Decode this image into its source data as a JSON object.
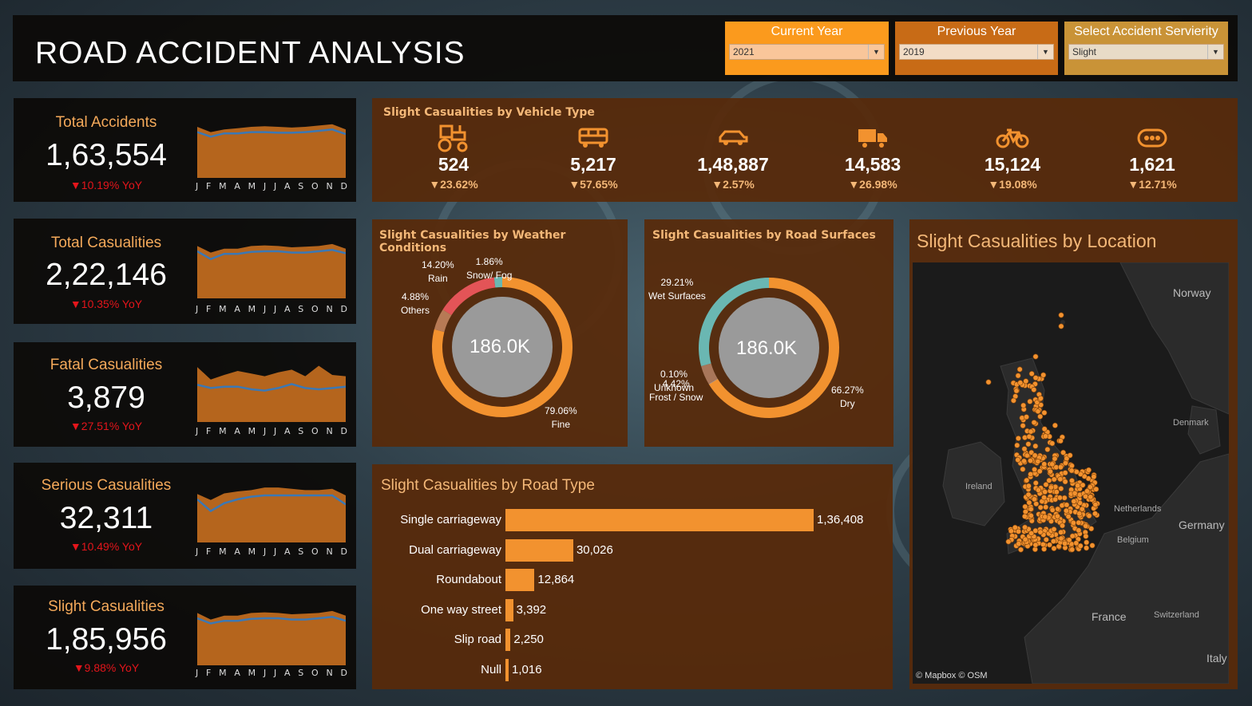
{
  "header": {
    "title": "ROAD ACCIDENT ANALYSIS",
    "filters": [
      {
        "label": "Current Year",
        "value": "2021"
      },
      {
        "label": "Previous Year",
        "value": "2019"
      },
      {
        "label": "Select Accident Servierity",
        "value": "Slight"
      }
    ]
  },
  "colors": {
    "accent": "#f2922f",
    "decline": "#e4151b",
    "trend_line": "#3c78b4",
    "panel_brown": "#582a0a",
    "rain": "#e35457",
    "snow_fog": "#6ab7b2",
    "others": "#b77a55"
  },
  "months": [
    "J",
    "F",
    "M",
    "A",
    "M",
    "J",
    "J",
    "A",
    "S",
    "O",
    "N",
    "D"
  ],
  "kpis": [
    {
      "label": "Total Accidents",
      "value": "1,63,554",
      "yoy": "▼10.19% YoY",
      "current": [
        78,
        70,
        74,
        76,
        78,
        79,
        78,
        77,
        78,
        80,
        82,
        74
      ],
      "previous": [
        70,
        63,
        68,
        68,
        70,
        70,
        69,
        69,
        70,
        72,
        74,
        67
      ]
    },
    {
      "label": "Total Casualities",
      "value": "2,22,146",
      "yoy": "▼10.35% YoY",
      "current": [
        80,
        70,
        76,
        76,
        80,
        81,
        80,
        78,
        79,
        80,
        83,
        76
      ],
      "previous": [
        72,
        60,
        68,
        68,
        71,
        72,
        72,
        70,
        70,
        72,
        74,
        69
      ]
    },
    {
      "label": "Fatal Casualities",
      "value": "3,879",
      "yoy": "▼27.51% YoY",
      "current": [
        84,
        65,
        72,
        78,
        74,
        70,
        76,
        80,
        70,
        86,
        72,
        70
      ],
      "previous": [
        57,
        52,
        54,
        54,
        50,
        48,
        52,
        58,
        52,
        50,
        52,
        54
      ]
    },
    {
      "label": "Serious Casualities",
      "value": "32,311",
      "yoy": "▼10.49% YoY",
      "current": [
        74,
        65,
        75,
        78,
        80,
        84,
        84,
        82,
        80,
        80,
        82,
        72
      ],
      "previous": [
        66,
        48,
        60,
        66,
        70,
        72,
        72,
        72,
        72,
        72,
        72,
        58
      ]
    },
    {
      "label": "Slight Casualities",
      "value": "1,85,956",
      "yoy": "▼9.88% YoY",
      "current": [
        80,
        70,
        76,
        76,
        80,
        81,
        80,
        78,
        79,
        80,
        83,
        76
      ],
      "previous": [
        72,
        64,
        68,
        68,
        71,
        72,
        72,
        70,
        70,
        72,
        74,
        68
      ]
    }
  ],
  "vehicle": {
    "title": "Slight Casualities by Vehicle Type",
    "items": [
      {
        "icon": "tractor-icon",
        "value": "524",
        "change": "▼23.62%"
      },
      {
        "icon": "bus-icon",
        "value": "5,217",
        "change": "▼57.65%"
      },
      {
        "icon": "car-icon",
        "value": "1,48,887",
        "change": "▼2.57%"
      },
      {
        "icon": "truck-icon",
        "value": "14,583",
        "change": "▼26.98%"
      },
      {
        "icon": "bicycle-icon",
        "value": "15,124",
        "change": "▼19.08%"
      },
      {
        "icon": "other-vehicle-icon",
        "value": "1,621",
        "change": "▼12.71%"
      }
    ]
  },
  "weather": {
    "title": "Slight Casualities by Weather Conditions",
    "center": "186.0K",
    "slices": [
      {
        "name": "Fine",
        "pct": "79.06%",
        "value": 79.06,
        "color": "#f2922f"
      },
      {
        "name": "Others",
        "pct": "4.88%",
        "value": 4.88,
        "color": "#b77a55"
      },
      {
        "name": "Rain",
        "pct": "14.20%",
        "value": 14.2,
        "color": "#e35457"
      },
      {
        "name": "Snow/ Fog",
        "pct": "1.86%",
        "value": 1.86,
        "color": "#6ab7b2"
      }
    ]
  },
  "surface": {
    "title": "Slight Casualities by Road Surfaces",
    "center": "186.0K",
    "slices": [
      {
        "name": "Dry",
        "pct": "66.27%",
        "value": 66.27,
        "color": "#f2922f"
      },
      {
        "name": "Unknown",
        "pct": "0.10%",
        "value": 0.1,
        "color": "#c0c0c0"
      },
      {
        "name": "Frost / Snow",
        "pct": "4.42%",
        "value": 4.42,
        "color": "#a8765a"
      },
      {
        "name": "Wet Surfaces",
        "pct": "29.21%",
        "value": 29.21,
        "color": "#6ab7b2"
      }
    ]
  },
  "roadtype": {
    "title": "Slight Casualities by Road Type",
    "max": 136408,
    "rows": [
      {
        "name": "Single carriageway",
        "value": 136408,
        "label": "1,36,408"
      },
      {
        "name": "Dual carriageway",
        "value": 30026,
        "label": "30,026"
      },
      {
        "name": "Roundabout",
        "value": 12864,
        "label": "12,864"
      },
      {
        "name": "One way street",
        "value": 3392,
        "label": "3,392"
      },
      {
        "name": "Slip road",
        "value": 2250,
        "label": "2,250"
      },
      {
        "name": "Null",
        "value": 1016,
        "label": "1,016"
      }
    ]
  },
  "map": {
    "title": "Slight Casualities by Location",
    "labels": [
      "Norway",
      "Denmark",
      "Ireland",
      "Netherlands",
      "Germany",
      "Belgium",
      "France",
      "Switzerland",
      "Italy"
    ],
    "attribution": "© Mapbox © OSM"
  }
}
